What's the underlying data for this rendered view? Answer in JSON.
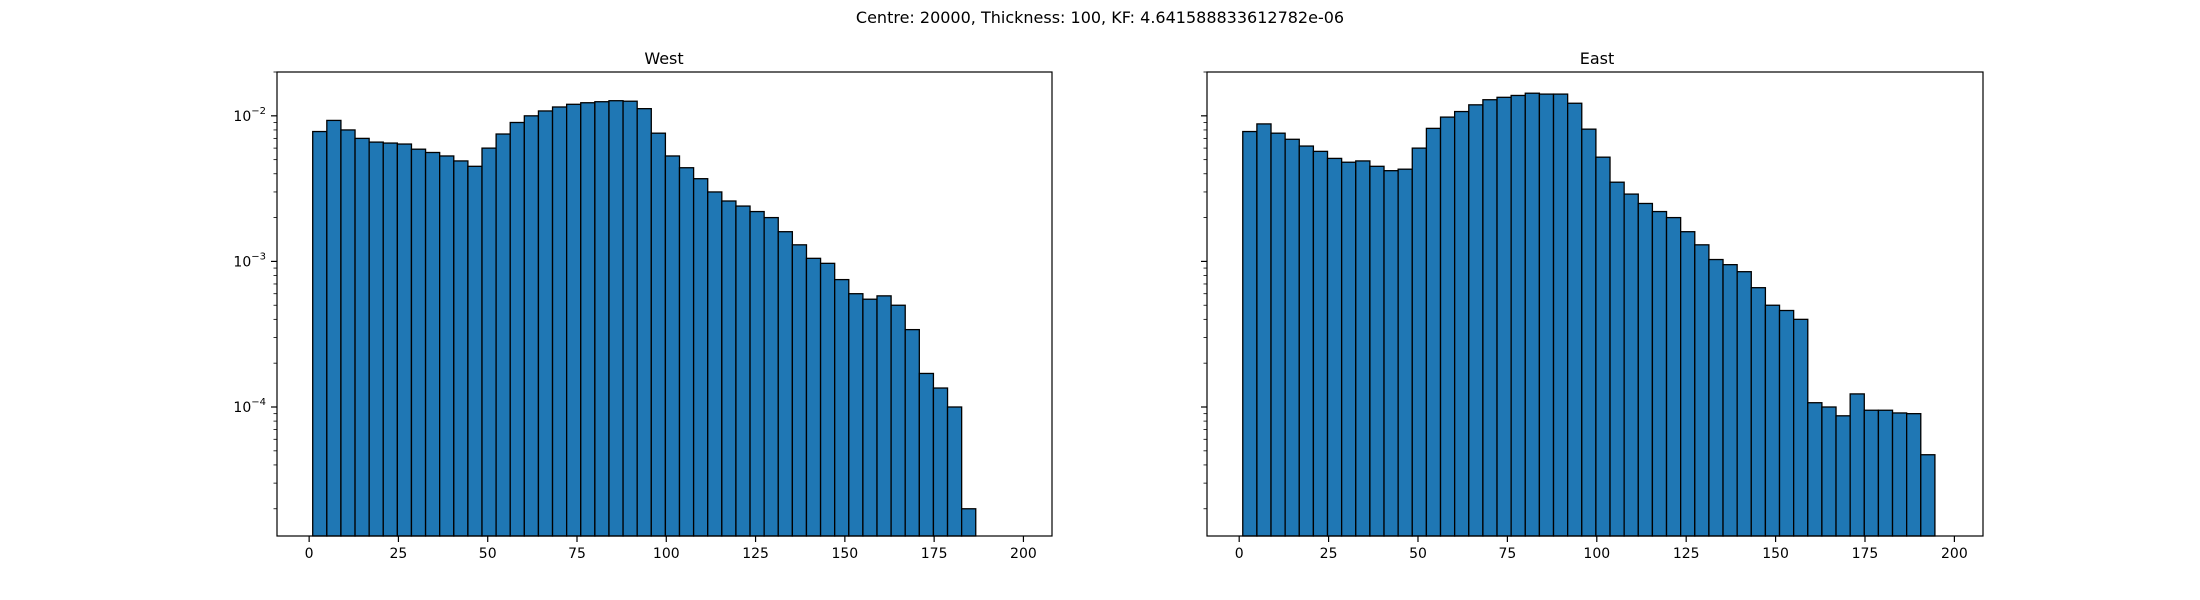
{
  "suptitle": "Centre: 20000, Thickness: 100, KF: 4.641588833612782e-06",
  "bar_color": "#1f77b4",
  "edge_color": "#000000",
  "chart_data": [
    {
      "type": "bar",
      "title": "West",
      "xlabel": "",
      "ylabel": "",
      "yscale": "log",
      "xlim": [
        -9,
        208
      ],
      "ylim": [
        1.3e-05,
        0.02
      ],
      "xticks": [
        0,
        25,
        50,
        75,
        100,
        125,
        150,
        175,
        200
      ],
      "xtick_labels": [
        "0",
        "25",
        "50",
        "75",
        "100",
        "125",
        "150",
        "175",
        "200"
      ],
      "yticks": [
        0.0001,
        0.001,
        0.01
      ],
      "ytick_labels": [
        "10^-4",
        "10^-3",
        "10^-2"
      ],
      "bin_start": 1,
      "bin_width": 3.95,
      "values": [
        0.0078,
        0.0093,
        0.008,
        0.007,
        0.0066,
        0.0065,
        0.0064,
        0.0059,
        0.0056,
        0.0053,
        0.0049,
        0.0045,
        0.006,
        0.0075,
        0.009,
        0.01,
        0.0108,
        0.0115,
        0.012,
        0.0123,
        0.0125,
        0.0127,
        0.0126,
        0.0112,
        0.0076,
        0.0053,
        0.0044,
        0.0037,
        0.003,
        0.0026,
        0.0024,
        0.0022,
        0.002,
        0.0016,
        0.0013,
        0.00105,
        0.00097,
        0.00075,
        0.0006,
        0.00055,
        0.00058,
        0.0005,
        0.00034,
        0.00017,
        0.000135,
        0.0001,
        2e-05
      ]
    },
    {
      "type": "bar",
      "title": "East",
      "xlabel": "",
      "ylabel": "",
      "yscale": "log",
      "xlim": [
        -9,
        208
      ],
      "ylim": [
        1.3e-05,
        0.02
      ],
      "xticks": [
        0,
        25,
        50,
        75,
        100,
        125,
        150,
        175,
        200
      ],
      "xtick_labels": [
        "0",
        "25",
        "50",
        "75",
        "100",
        "125",
        "150",
        "175",
        "200"
      ],
      "yticks": [
        0.0001,
        0.001,
        0.01
      ],
      "ytick_labels": [
        "",
        "",
        ""
      ],
      "bin_start": 1,
      "bin_width": 3.95,
      "values": [
        0.0078,
        0.0088,
        0.0076,
        0.0069,
        0.0062,
        0.0057,
        0.0051,
        0.0048,
        0.0049,
        0.0045,
        0.0042,
        0.0043,
        0.006,
        0.0082,
        0.0098,
        0.0107,
        0.0119,
        0.0129,
        0.0134,
        0.0138,
        0.0143,
        0.0141,
        0.0141,
        0.0122,
        0.0081,
        0.0052,
        0.0035,
        0.0029,
        0.0025,
        0.0022,
        0.002,
        0.0016,
        0.0013,
        0.00103,
        0.00095,
        0.00085,
        0.00066,
        0.0005,
        0.00046,
        0.0004,
        0.000107,
        0.0001,
        8.7e-05,
        0.000123,
        9.5e-05,
        9.5e-05,
        9.1e-05,
        9e-05,
        4.7e-05
      ]
    }
  ]
}
